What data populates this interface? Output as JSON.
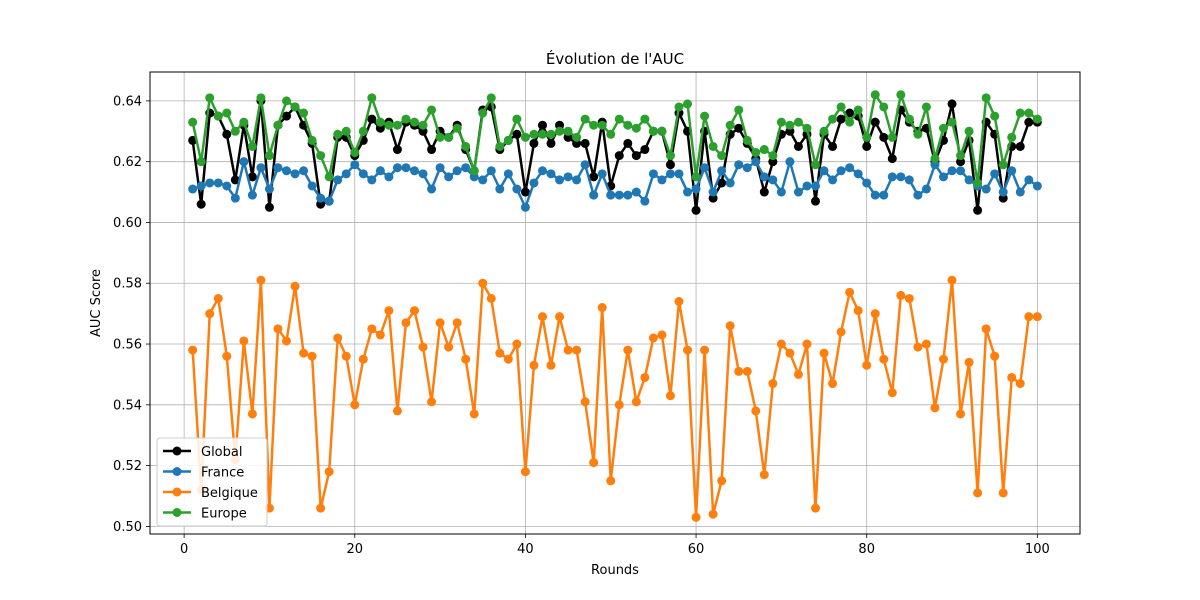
{
  "chart_data": {
    "type": "line",
    "title": "Évolution de l'AUC",
    "xlabel": "Rounds",
    "ylabel": "AUC Score",
    "xlim": [
      -4,
      105
    ],
    "ylim": [
      0.4975,
      0.6495
    ],
    "xticks": [
      0,
      20,
      40,
      60,
      80,
      100
    ],
    "yticks": [
      0.5,
      0.52,
      0.54,
      0.56,
      0.58,
      0.6,
      0.62,
      0.64
    ],
    "xtick_labels": [
      "0",
      "20",
      "40",
      "60",
      "80",
      "100"
    ],
    "ytick_labels": [
      "0.50",
      "0.52",
      "0.54",
      "0.56",
      "0.58",
      "0.60",
      "0.62",
      "0.64"
    ],
    "grid": true,
    "legend_position": "lower-left",
    "x": [
      1,
      2,
      3,
      4,
      5,
      6,
      7,
      8,
      9,
      10,
      11,
      12,
      13,
      14,
      15,
      16,
      17,
      18,
      19,
      20,
      21,
      22,
      23,
      24,
      25,
      26,
      27,
      28,
      29,
      30,
      31,
      32,
      33,
      34,
      35,
      36,
      37,
      38,
      39,
      40,
      41,
      42,
      43,
      44,
      45,
      46,
      47,
      48,
      49,
      50,
      51,
      52,
      53,
      54,
      55,
      56,
      57,
      58,
      59,
      60,
      61,
      62,
      63,
      64,
      65,
      66,
      67,
      68,
      69,
      70,
      71,
      72,
      73,
      74,
      75,
      76,
      77,
      78,
      79,
      80,
      81,
      82,
      83,
      84,
      85,
      86,
      87,
      88,
      89,
      90,
      91,
      92,
      93,
      94,
      95,
      96,
      97,
      98,
      99,
      100
    ],
    "series": [
      {
        "name": "Global",
        "color": "#000000",
        "values": [
          0.627,
          0.606,
          0.636,
          0.635,
          0.629,
          0.614,
          0.632,
          0.615,
          0.64,
          0.605,
          0.632,
          0.635,
          0.638,
          0.632,
          0.626,
          0.606,
          0.607,
          0.628,
          0.628,
          0.622,
          0.627,
          0.634,
          0.631,
          0.633,
          0.624,
          0.633,
          0.632,
          0.63,
          0.624,
          0.63,
          0.628,
          0.632,
          0.624,
          0.617,
          0.637,
          0.638,
          0.624,
          0.627,
          0.629,
          0.61,
          0.626,
          0.632,
          0.626,
          0.632,
          0.628,
          0.626,
          0.626,
          0.615,
          0.633,
          0.612,
          0.622,
          0.626,
          0.622,
          0.624,
          0.63,
          0.63,
          0.619,
          0.636,
          0.63,
          0.604,
          0.63,
          0.608,
          0.613,
          0.629,
          0.631,
          0.626,
          0.621,
          0.61,
          0.62,
          0.629,
          0.63,
          0.625,
          0.629,
          0.607,
          0.629,
          0.625,
          0.634,
          0.636,
          0.635,
          0.625,
          0.633,
          0.628,
          0.621,
          0.637,
          0.633,
          0.63,
          0.631,
          0.62,
          0.627,
          0.639,
          0.62,
          0.627,
          0.604,
          0.633,
          0.629,
          0.608,
          0.625,
          0.625,
          0.633,
          0.633
        ]
      },
      {
        "name": "France",
        "color": "#1f77b4",
        "values": [
          0.611,
          0.612,
          0.613,
          0.613,
          0.612,
          0.608,
          0.62,
          0.609,
          0.618,
          0.611,
          0.618,
          0.617,
          0.616,
          0.617,
          0.612,
          0.608,
          0.607,
          0.614,
          0.616,
          0.619,
          0.616,
          0.614,
          0.617,
          0.615,
          0.618,
          0.618,
          0.617,
          0.616,
          0.611,
          0.618,
          0.615,
          0.617,
          0.618,
          0.615,
          0.614,
          0.617,
          0.611,
          0.616,
          0.611,
          0.605,
          0.613,
          0.617,
          0.616,
          0.614,
          0.615,
          0.614,
          0.619,
          0.609,
          0.616,
          0.609,
          0.609,
          0.609,
          0.61,
          0.607,
          0.616,
          0.614,
          0.616,
          0.616,
          0.61,
          0.611,
          0.618,
          0.61,
          0.617,
          0.613,
          0.619,
          0.618,
          0.62,
          0.615,
          0.614,
          0.61,
          0.62,
          0.61,
          0.612,
          0.612,
          0.617,
          0.614,
          0.617,
          0.618,
          0.616,
          0.613,
          0.609,
          0.609,
          0.615,
          0.615,
          0.614,
          0.609,
          0.611,
          0.619,
          0.615,
          0.617,
          0.617,
          0.614,
          0.612,
          0.611,
          0.616,
          0.61,
          0.617,
          0.61,
          0.614,
          0.612
        ]
      },
      {
        "name": "Belgique",
        "color": "#ff7f0e",
        "values": [
          0.558,
          0.512,
          0.57,
          0.575,
          0.556,
          0.522,
          0.561,
          0.537,
          0.581,
          0.506,
          0.565,
          0.561,
          0.579,
          0.557,
          0.556,
          0.506,
          0.518,
          0.562,
          0.556,
          0.54,
          0.555,
          0.565,
          0.563,
          0.571,
          0.538,
          0.567,
          0.571,
          0.559,
          0.541,
          0.567,
          0.559,
          0.567,
          0.555,
          0.537,
          0.58,
          0.575,
          0.557,
          0.555,
          0.56,
          0.518,
          0.553,
          0.569,
          0.553,
          0.569,
          0.558,
          0.558,
          0.541,
          0.521,
          0.572,
          0.515,
          0.54,
          0.558,
          0.541,
          0.549,
          0.562,
          0.563,
          0.543,
          0.574,
          0.558,
          0.503,
          0.558,
          0.504,
          0.515,
          0.566,
          0.551,
          0.551,
          0.538,
          0.517,
          0.547,
          0.56,
          0.557,
          0.55,
          0.56,
          0.506,
          0.557,
          0.547,
          0.564,
          0.577,
          0.571,
          0.553,
          0.57,
          0.555,
          0.544,
          0.576,
          0.575,
          0.559,
          0.56,
          0.539,
          0.555,
          0.581,
          0.537,
          0.554,
          0.511,
          0.565,
          0.556,
          0.511,
          0.549,
          0.547,
          0.569,
          0.569
        ]
      },
      {
        "name": "Europe",
        "color": "#2ca02c",
        "values": [
          0.633,
          0.62,
          0.641,
          0.635,
          0.636,
          0.63,
          0.633,
          0.625,
          0.641,
          0.622,
          0.632,
          0.64,
          0.638,
          0.636,
          0.627,
          0.622,
          0.615,
          0.629,
          0.63,
          0.623,
          0.63,
          0.641,
          0.633,
          0.632,
          0.632,
          0.634,
          0.633,
          0.632,
          0.637,
          0.628,
          0.628,
          0.631,
          0.625,
          0.617,
          0.636,
          0.641,
          0.625,
          0.627,
          0.634,
          0.628,
          0.629,
          0.629,
          0.629,
          0.63,
          0.63,
          0.628,
          0.634,
          0.632,
          0.632,
          0.629,
          0.634,
          0.632,
          0.631,
          0.634,
          0.63,
          0.63,
          0.622,
          0.638,
          0.639,
          0.615,
          0.635,
          0.625,
          0.622,
          0.632,
          0.637,
          0.627,
          0.623,
          0.624,
          0.622,
          0.633,
          0.632,
          0.633,
          0.631,
          0.619,
          0.63,
          0.634,
          0.638,
          0.633,
          0.637,
          0.628,
          0.642,
          0.638,
          0.628,
          0.642,
          0.634,
          0.629,
          0.638,
          0.621,
          0.631,
          0.633,
          0.622,
          0.63,
          0.613,
          0.641,
          0.635,
          0.619,
          0.628,
          0.636,
          0.636,
          0.634
        ]
      }
    ]
  }
}
